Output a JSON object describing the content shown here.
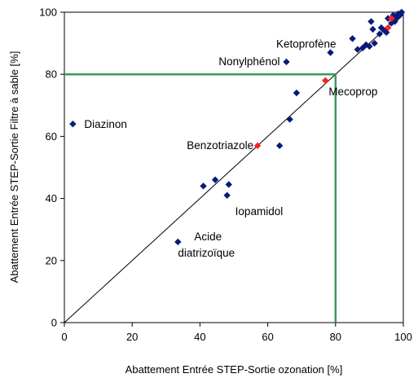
{
  "chart_data": {
    "type": "scatter",
    "title": "",
    "xlabel": "Abattement Entrée STEP-Sortie ozonation [%]",
    "ylabel": "Abattement Entrée STEP-Sortie Filtre à sable [%]",
    "xlim": [
      0,
      100
    ],
    "ylim": [
      0,
      100
    ],
    "xticks": [
      0,
      20,
      40,
      60,
      80,
      100
    ],
    "yticks": [
      0,
      20,
      40,
      60,
      80,
      100
    ],
    "grid": false,
    "legend": "none",
    "colors": {
      "blue_points": "#0a1a7a",
      "red_points": "#ff2020",
      "threshold_lines": "#3a9a5c",
      "diagonal": "#000000"
    },
    "series": [
      {
        "color": "blue",
        "marker": "diamond",
        "points": [
          {
            "x": 2.5,
            "y": 64
          },
          {
            "x": 33.5,
            "y": 26
          },
          {
            "x": 41,
            "y": 44
          },
          {
            "x": 44.5,
            "y": 46
          },
          {
            "x": 48,
            "y": 41
          },
          {
            "x": 48.5,
            "y": 44.5
          },
          {
            "x": 63.5,
            "y": 57
          },
          {
            "x": 66.5,
            "y": 65.5
          },
          {
            "x": 68.5,
            "y": 74
          },
          {
            "x": 65.5,
            "y": 84
          },
          {
            "x": 78.5,
            "y": 87
          },
          {
            "x": 85,
            "y": 91.5
          },
          {
            "x": 86.5,
            "y": 88
          },
          {
            "x": 88,
            "y": 88.5
          },
          {
            "x": 89,
            "y": 89.5
          },
          {
            "x": 90,
            "y": 89
          },
          {
            "x": 90.5,
            "y": 97
          },
          {
            "x": 91,
            "y": 94.5
          },
          {
            "x": 91.5,
            "y": 90
          },
          {
            "x": 93,
            "y": 93
          },
          {
            "x": 93.5,
            "y": 95
          },
          {
            "x": 94.5,
            "y": 94
          },
          {
            "x": 95,
            "y": 93.5
          },
          {
            "x": 95.5,
            "y": 98
          },
          {
            "x": 96.5,
            "y": 96.5
          },
          {
            "x": 97,
            "y": 99
          },
          {
            "x": 97.5,
            "y": 97
          },
          {
            "x": 98,
            "y": 98
          },
          {
            "x": 98.5,
            "y": 99.5
          },
          {
            "x": 99,
            "y": 99
          },
          {
            "x": 99.5,
            "y": 100
          }
        ]
      },
      {
        "color": "red",
        "marker": "diamond",
        "points": [
          {
            "x": 57,
            "y": 57
          },
          {
            "x": 77,
            "y": 78
          },
          {
            "x": 95.5,
            "y": 95
          },
          {
            "x": 96.5,
            "y": 98
          }
        ]
      }
    ],
    "reference_lines": [
      {
        "kind": "diagonal",
        "from": [
          0,
          0
        ],
        "to": [
          100,
          100
        ]
      },
      {
        "kind": "horizontal",
        "y": 80,
        "x_from": 0,
        "x_to": 80
      },
      {
        "kind": "vertical",
        "x": 80,
        "y_from": 0,
        "y_to": 80
      }
    ],
    "annotations": [
      {
        "text": "Diazinon",
        "x": 2.5,
        "y": 64
      },
      {
        "text": "Acide",
        "x": 33.5,
        "y": 26
      },
      {
        "text": "diatrizoïque",
        "x": 33.5,
        "y": 26
      },
      {
        "text": "Iopamidol",
        "x": 48,
        "y": 41
      },
      {
        "text": "Benzotriazole",
        "x": 57,
        "y": 57
      },
      {
        "text": "Nonylphénol",
        "x": 65.5,
        "y": 84
      },
      {
        "text": "Ketoprofène",
        "x": 78.5,
        "y": 87
      },
      {
        "text": "Mecoprop",
        "x": 77,
        "y": 78
      }
    ]
  }
}
